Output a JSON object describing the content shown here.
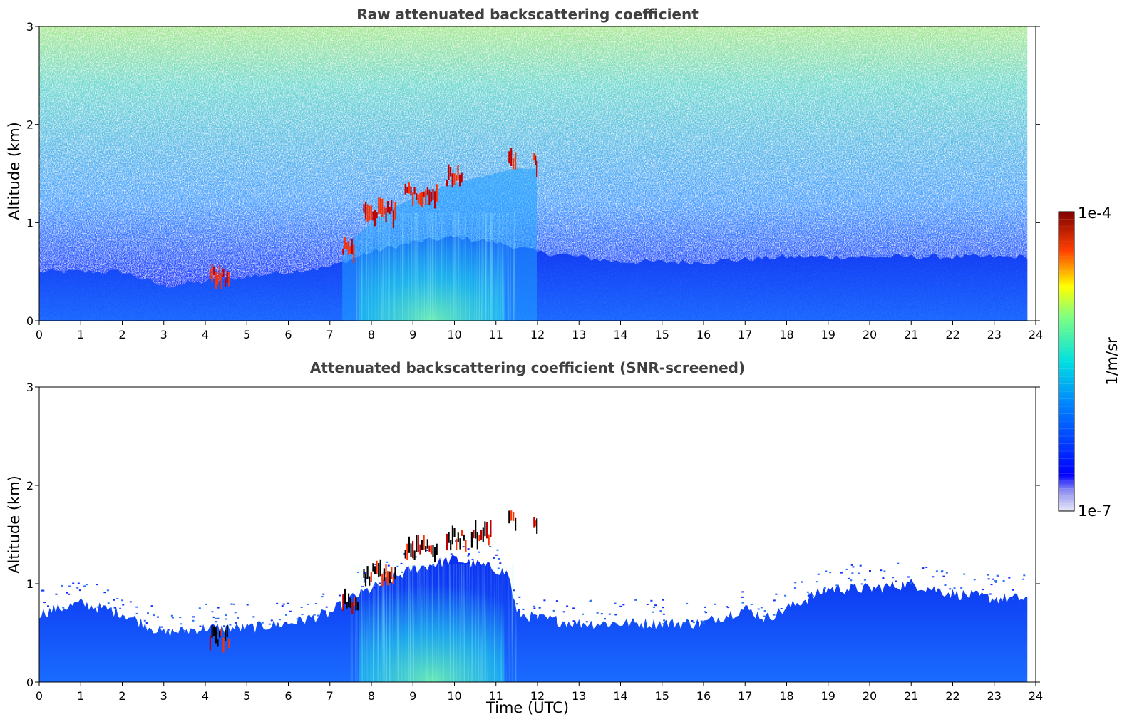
{
  "chart_data": [
    {
      "type": "heatmap",
      "title": "Raw attenuated backscattering coefficient",
      "xlabel": "",
      "ylabel": "Altitude (km)",
      "xlim": [
        0,
        24
      ],
      "ylim": [
        0,
        3
      ],
      "xticks": [
        "0",
        "1",
        "2",
        "3",
        "4",
        "5",
        "6",
        "7",
        "8",
        "9",
        "10",
        "11",
        "12",
        "13",
        "14",
        "15",
        "16",
        "17",
        "18",
        "19",
        "20",
        "21",
        "22",
        "23",
        "24"
      ],
      "yticks": [
        "0",
        "1",
        "2",
        "3"
      ],
      "data_end_time": 23.8,
      "boundary_layer_top": {
        "time": [
          0,
          2,
          3,
          4,
          5,
          6,
          7,
          8,
          9,
          10,
          11,
          12,
          14,
          16,
          18,
          20,
          22,
          23.8
        ],
        "altitude": [
          0.5,
          0.5,
          0.35,
          0.4,
          0.45,
          0.5,
          0.55,
          0.7,
          0.8,
          0.85,
          0.8,
          0.7,
          0.6,
          0.6,
          0.65,
          0.65,
          0.65,
          0.65
        ]
      },
      "aerosol_layer_top": {
        "time": [
          7.3,
          7.6,
          8.0,
          8.5,
          9.0,
          9.5,
          10.0,
          10.5,
          11.0,
          11.4,
          12.0
        ],
        "altitude": [
          0.7,
          0.9,
          1.05,
          1.2,
          1.3,
          1.38,
          1.45,
          1.5,
          1.55,
          1.6,
          1.6
        ]
      },
      "cloud_segments": [
        {
          "t0": 4.1,
          "t1": 4.6,
          "altitude": 0.45
        },
        {
          "t0": 7.3,
          "t1": 7.6,
          "altitude": 0.75
        },
        {
          "t0": 7.8,
          "t1": 8.6,
          "altitude": 1.1
        },
        {
          "t0": 8.8,
          "t1": 9.6,
          "altitude": 1.3
        },
        {
          "t0": 9.8,
          "t1": 10.2,
          "altitude": 1.45
        },
        {
          "t0": 11.3,
          "t1": 11.5,
          "altitude": 1.62
        },
        {
          "t0": 11.9,
          "t1": 12.0,
          "altitude": 1.6
        }
      ]
    },
    {
      "type": "heatmap",
      "title": "Attenuated backscattering coefficient (SNR-screened)",
      "xlabel": "Time (UTC)",
      "ylabel": "Altitude (km)",
      "xlim": [
        0,
        24
      ],
      "ylim": [
        0,
        3
      ],
      "xticks": [
        "0",
        "1",
        "2",
        "3",
        "4",
        "5",
        "6",
        "7",
        "8",
        "9",
        "10",
        "11",
        "12",
        "13",
        "14",
        "15",
        "16",
        "17",
        "18",
        "19",
        "20",
        "21",
        "22",
        "23",
        "24"
      ],
      "yticks": [
        "0",
        "1",
        "2",
        "3"
      ],
      "data_end_time": 23.8,
      "signal_top": {
        "time": [
          0,
          1,
          2,
          3,
          4,
          5,
          6,
          7,
          7.5,
          8,
          8.5,
          9,
          9.5,
          10,
          10.5,
          11,
          11.3,
          11.5,
          12,
          13,
          14,
          15,
          16,
          17,
          17.5,
          18,
          19,
          20,
          21,
          22,
          23,
          23.8
        ],
        "altitude": [
          0.7,
          0.8,
          0.7,
          0.5,
          0.55,
          0.55,
          0.6,
          0.7,
          0.85,
          0.95,
          1.05,
          1.15,
          1.2,
          1.25,
          1.2,
          1.15,
          1.1,
          0.7,
          0.65,
          0.6,
          0.6,
          0.6,
          0.6,
          0.75,
          0.65,
          0.75,
          0.95,
          0.95,
          1.0,
          0.9,
          0.85,
          0.85
        ]
      },
      "cloud_segments": [
        {
          "t0": 4.1,
          "t1": 4.6,
          "altitude": 0.45
        },
        {
          "t0": 7.3,
          "t1": 7.7,
          "altitude": 0.8
        },
        {
          "t0": 7.8,
          "t1": 8.6,
          "altitude": 1.1
        },
        {
          "t0": 8.8,
          "t1": 9.6,
          "altitude": 1.35
        },
        {
          "t0": 9.8,
          "t1": 10.3,
          "altitude": 1.45
        },
        {
          "t0": 10.4,
          "t1": 10.9,
          "altitude": 1.5
        },
        {
          "t0": 11.3,
          "t1": 11.5,
          "altitude": 1.65
        },
        {
          "t0": 11.9,
          "t1": 12.0,
          "altitude": 1.6
        }
      ]
    }
  ],
  "colorbar": {
    "label": "1/m/sr",
    "min_label": "1e-7",
    "max_label": "1e-4",
    "colormap": "jet",
    "scale": "log"
  }
}
